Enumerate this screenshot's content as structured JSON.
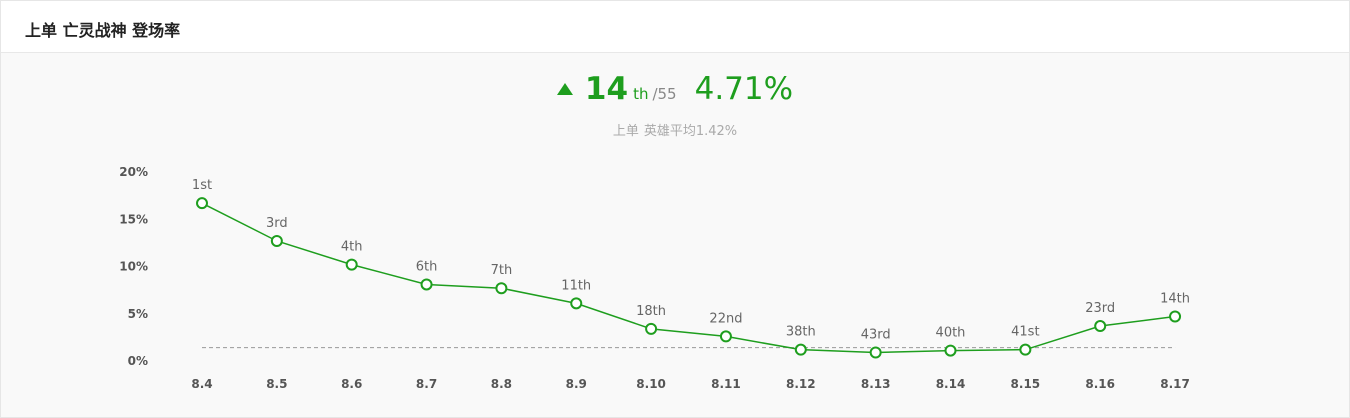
{
  "header": {
    "title": "上单 亡灵战神 登场率"
  },
  "summary": {
    "trend_icon": "triangle-up-icon",
    "rank": "14",
    "rank_suffix": "th",
    "rank_total": "/55",
    "rate": "4.71%",
    "avg_position": "上单",
    "avg_label": "英雄平均1.42%"
  },
  "colors": {
    "accent": "#1e9e1e",
    "avg_line": "#999999",
    "background": "#f9f9f9"
  },
  "chart_data": {
    "type": "line",
    "x": [
      "8.4",
      "8.5",
      "8.6",
      "8.7",
      "8.8",
      "8.9",
      "8.10",
      "8.11",
      "8.12",
      "8.13",
      "8.14",
      "8.15",
      "8.16",
      "8.17"
    ],
    "series": [
      {
        "values": [
          16.7,
          12.7,
          10.2,
          8.1,
          7.7,
          6.1,
          3.4,
          2.6,
          1.2,
          0.9,
          1.1,
          1.2,
          3.7,
          4.71
        ],
        "point_labels": [
          "1st",
          "3rd",
          "4th",
          "6th",
          "7th",
          "11th",
          "18th",
          "22nd",
          "38th",
          "43rd",
          "40th",
          "41st",
          "23rd",
          "14th"
        ]
      }
    ],
    "reference_line": 1.42,
    "yticks": [
      "0%",
      "5%",
      "10%",
      "15%",
      "20%"
    ],
    "ylim": [
      0,
      20
    ],
    "grid": false
  }
}
